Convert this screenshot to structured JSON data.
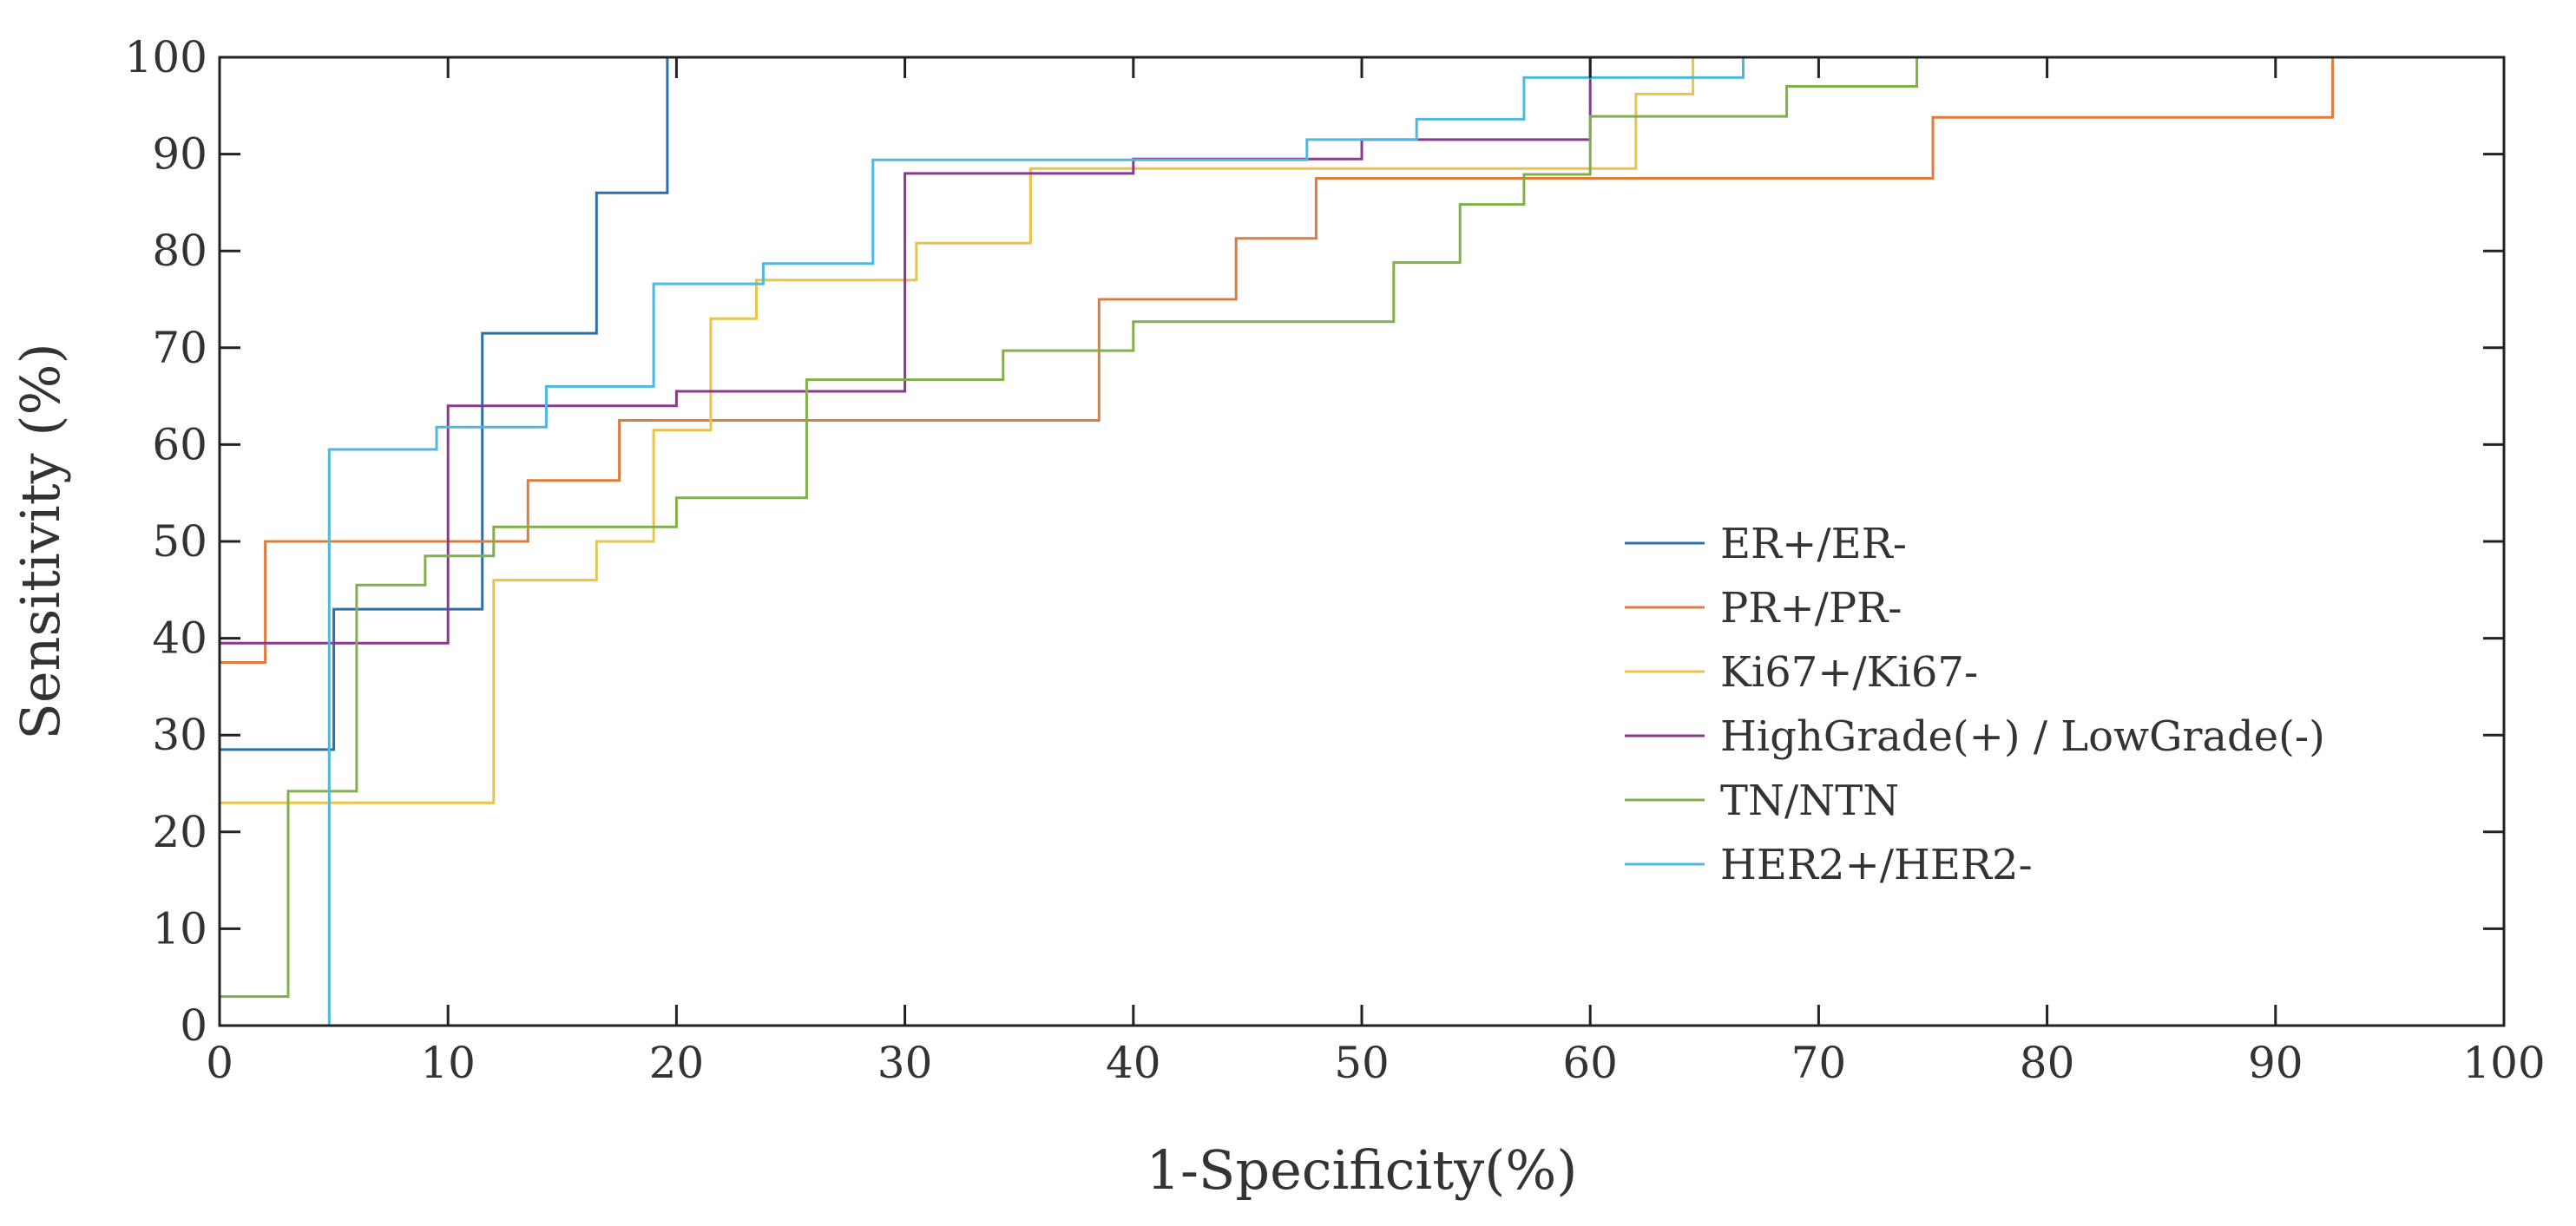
{
  "chart_data": {
    "type": "line",
    "title": "",
    "xlabel": "1-Specificity(%)",
    "ylabel": "Sensitivity (%)",
    "xlim": [
      0,
      100
    ],
    "ylim": [
      0,
      100
    ],
    "xticks": [
      "0",
      "10",
      "20",
      "30",
      "40",
      "50",
      "60",
      "70",
      "80",
      "90",
      "100"
    ],
    "yticks": [
      "0",
      "10",
      "20",
      "30",
      "40",
      "50",
      "60",
      "70",
      "80",
      "90",
      "100"
    ],
    "grid": false,
    "legend_position": "right",
    "series": [
      {
        "name": "ER+/ER-",
        "color": "#2f6fa8",
        "x": [
          0,
          0,
          5,
          5,
          11.5,
          11.5,
          16.5,
          16.5,
          19.6,
          19.6,
          100
        ],
        "y": [
          0,
          28.5,
          28.5,
          43,
          43,
          71.5,
          71.5,
          86,
          86,
          100,
          100
        ]
      },
      {
        "name": "PR+/PR-",
        "color": "#e07b3c",
        "x": [
          0,
          0,
          2,
          2,
          13.5,
          13.5,
          17.5,
          17.5,
          38.5,
          38.5,
          44.5,
          44.5,
          48,
          48,
          75,
          75,
          92.5,
          92.5,
          100
        ],
        "y": [
          0,
          37.5,
          37.5,
          50,
          50,
          56.3,
          56.3,
          62.5,
          62.5,
          75,
          75,
          81.3,
          81.3,
          87.5,
          87.5,
          93.8,
          93.8,
          100,
          100
        ]
      },
      {
        "name": "Ki67+/Ki67-",
        "color": "#e8c44a",
        "x": [
          0,
          0,
          12,
          12,
          16.5,
          16.5,
          19,
          19,
          21.5,
          21.5,
          23.5,
          23.5,
          30.5,
          30.5,
          35.5,
          35.5,
          62,
          62,
          64.5,
          64.5,
          100
        ],
        "y": [
          0,
          23,
          23,
          46,
          46,
          50,
          50,
          61.5,
          61.5,
          73,
          73,
          77,
          77,
          80.8,
          80.8,
          88.5,
          88.5,
          96.2,
          96.2,
          100,
          100
        ]
      },
      {
        "name": "HighGrade(+) / LowGrade(-)",
        "color": "#8a3a8c",
        "x": [
          0,
          0,
          10,
          10,
          20,
          20,
          30,
          30,
          40,
          40,
          50,
          50,
          60,
          60,
          100
        ],
        "y": [
          0,
          39.5,
          39.5,
          64,
          64,
          65.5,
          65.5,
          88,
          88,
          89.5,
          89.5,
          91.5,
          91.5,
          100,
          100
        ]
      },
      {
        "name": "TN/NTN",
        "color": "#7fb04a",
        "x": [
          0,
          0,
          3,
          3,
          6,
          6,
          9,
          9,
          12,
          12,
          20,
          20,
          25.7,
          25.7,
          34.3,
          34.3,
          40,
          40,
          51.4,
          51.4,
          54.3,
          54.3,
          57.1,
          57.1,
          60,
          60,
          68.6,
          68.6,
          74.3,
          74.3,
          100
        ],
        "y": [
          0,
          3,
          3,
          24.2,
          24.2,
          45.5,
          45.5,
          48.5,
          48.5,
          51.5,
          51.5,
          54.5,
          54.5,
          66.7,
          66.7,
          69.7,
          69.7,
          72.7,
          72.7,
          78.8,
          78.8,
          84.8,
          84.8,
          87.9,
          87.9,
          93.9,
          93.9,
          97,
          97,
          100,
          100
        ]
      },
      {
        "name": "HER2+/HER2-",
        "color": "#4fb8e0",
        "x": [
          0,
          0,
          4.8,
          4.8,
          9.5,
          9.5,
          14.3,
          14.3,
          19,
          19,
          23.8,
          23.8,
          28.6,
          28.6,
          47.6,
          47.6,
          52.4,
          52.4,
          57.1,
          57.1,
          66.7,
          66.7,
          100
        ],
        "y": [
          0,
          0,
          0,
          59.5,
          59.5,
          61.8,
          61.8,
          66,
          66,
          76.6,
          76.6,
          78.7,
          78.7,
          89.4,
          89.4,
          91.5,
          91.5,
          93.6,
          93.6,
          97.9,
          97.9,
          100,
          100
        ]
      }
    ]
  }
}
